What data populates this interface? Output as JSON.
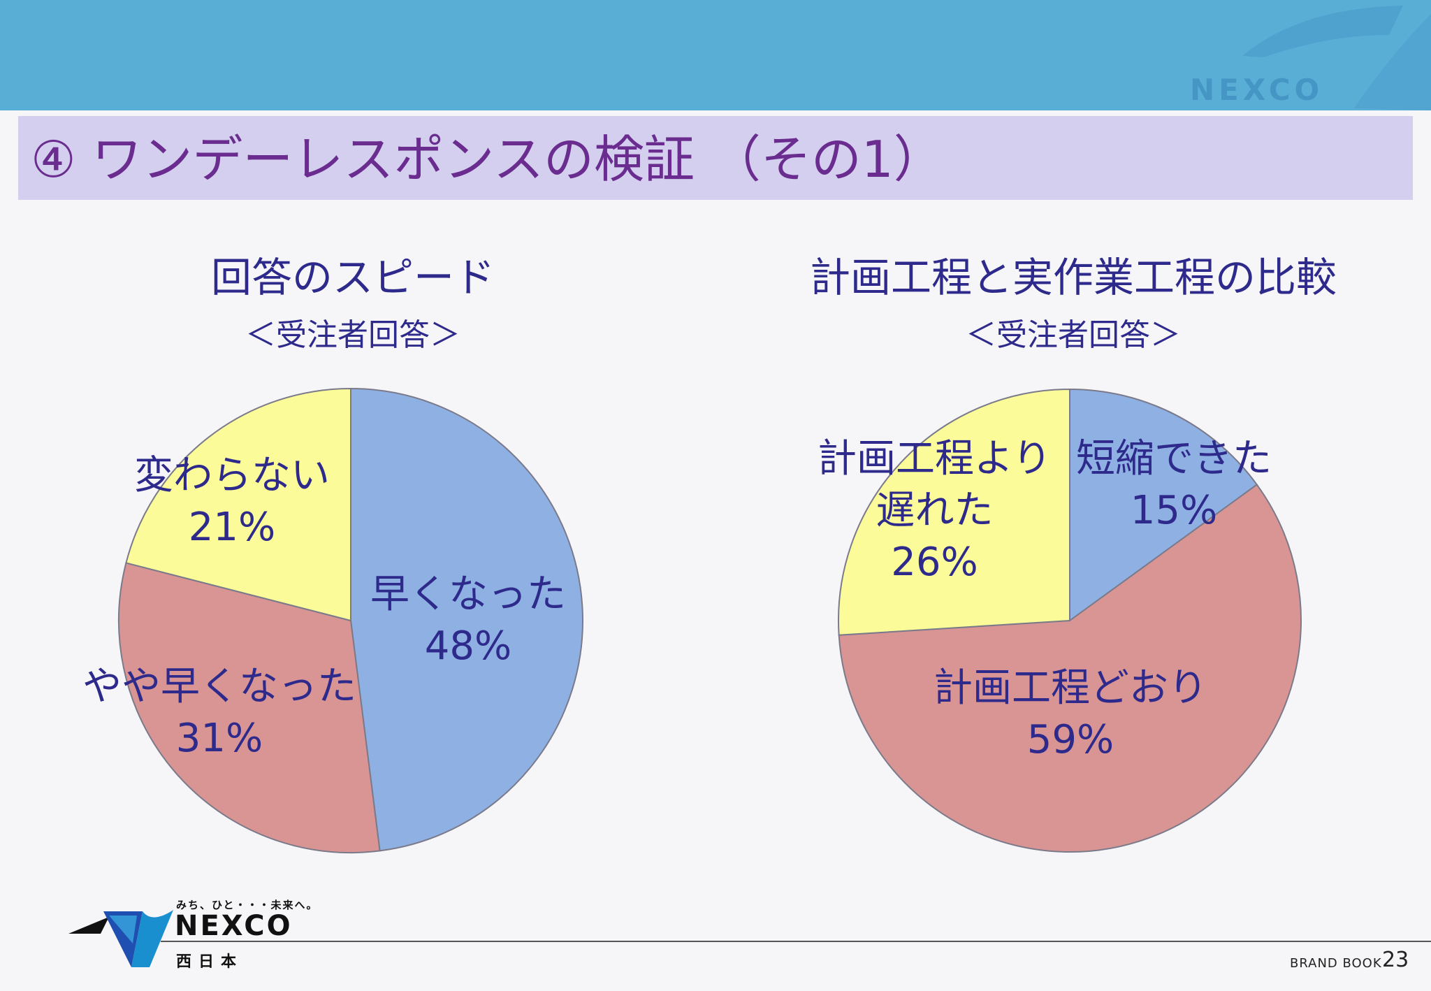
{
  "page": {
    "title": "④ ワンデーレスポンスの検証 （その1）",
    "header_logo_text": "NEXCO",
    "footer": {
      "tagline": "みち、ひと・・・未来へ。",
      "brand": "NEXCO",
      "brand_sub": "西日本",
      "book_label": "BRAND BOOK",
      "page_number": "23"
    }
  },
  "colors": {
    "header_bar": "#59aed6",
    "title_bar": "#d4cfee",
    "title_text": "#6a2c8f",
    "text": "#2e2a8c",
    "slice_blue": "#8fb0e3",
    "slice_red": "#d99594",
    "slice_yellow": "#fbfb99",
    "slice_border": "#7a7a8a"
  },
  "chart_data": [
    {
      "type": "pie",
      "title": "回答のスピード",
      "subtitle": "＜受注者回答＞",
      "slices": [
        {
          "label": "早くなった",
          "value": 48,
          "value_label": "48%",
          "color": "#8fb0e3"
        },
        {
          "label": "やや早くなった",
          "value": 31,
          "value_label": "31%",
          "color": "#d99594"
        },
        {
          "label": "変わらない",
          "value": 21,
          "value_label": "21%",
          "color": "#fbfb99"
        }
      ]
    },
    {
      "type": "pie",
      "title": "計画工程と実作業工程の比較",
      "subtitle": "＜受注者回答＞",
      "slices": [
        {
          "label": "短縮できた",
          "value": 15,
          "value_label": "15%",
          "color": "#8fb0e3"
        },
        {
          "label": "計画工程どおり",
          "value": 59,
          "value_label": "59%",
          "color": "#d99594"
        },
        {
          "label": "計画工程より\n遅れた",
          "value": 26,
          "value_label": "26%",
          "color": "#fbfb99"
        }
      ]
    }
  ]
}
